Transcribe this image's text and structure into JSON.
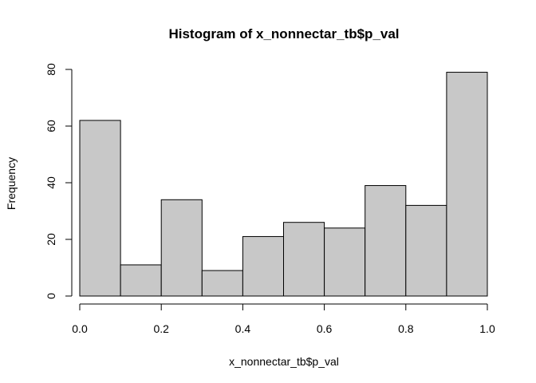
{
  "chart_data": {
    "type": "bar",
    "title": "Histogram of x_nonnectar_tb$p_val",
    "xlabel": "x_nonnectar_tb$p_val",
    "ylabel": "Frequency",
    "bins": [
      {
        "x0": 0.0,
        "x1": 0.1,
        "count": 62
      },
      {
        "x0": 0.1,
        "x1": 0.2,
        "count": 11
      },
      {
        "x0": 0.2,
        "x1": 0.3,
        "count": 34
      },
      {
        "x0": 0.3,
        "x1": 0.4,
        "count": 9
      },
      {
        "x0": 0.4,
        "x1": 0.5,
        "count": 21
      },
      {
        "x0": 0.5,
        "x1": 0.6,
        "count": 26
      },
      {
        "x0": 0.6,
        "x1": 0.7,
        "count": 24
      },
      {
        "x0": 0.7,
        "x1": 0.8,
        "count": 39
      },
      {
        "x0": 0.8,
        "x1": 0.9,
        "count": 32
      },
      {
        "x0": 0.9,
        "x1": 1.0,
        "count": 79
      }
    ],
    "xlim": [
      0,
      1
    ],
    "ylim": [
      0,
      80
    ],
    "x_ticks": [
      0.0,
      0.2,
      0.4,
      0.6,
      0.8,
      1.0
    ],
    "x_tick_labels": [
      "0.0",
      "0.2",
      "0.4",
      "0.6",
      "0.8",
      "1.0"
    ],
    "y_ticks": [
      0,
      20,
      40,
      60,
      80
    ],
    "y_tick_labels": [
      "0",
      "20",
      "40",
      "60",
      "80"
    ],
    "bar_color": "#c8c8c8",
    "grid": false,
    "legend": false
  }
}
